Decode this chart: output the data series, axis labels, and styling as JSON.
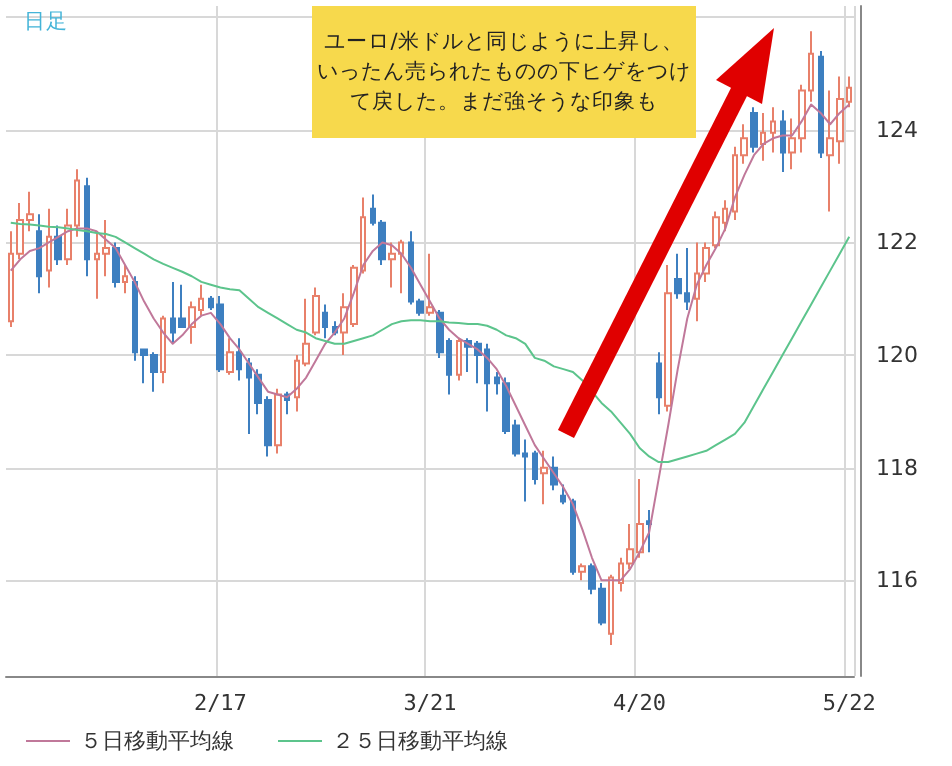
{
  "chart_data": {
    "type": "candlestick",
    "categories": [
      null,
      null,
      null,
      null,
      null,
      null,
      null,
      null,
      null,
      null,
      null,
      null,
      null,
      null,
      null,
      null,
      null,
      null,
      null,
      null,
      null,
      null,
      "2/17",
      null,
      null,
      null,
      null,
      null,
      null,
      null,
      null,
      null,
      null,
      null,
      null,
      null,
      null,
      null,
      null,
      null,
      null,
      null,
      null,
      null,
      "3/21",
      null,
      null,
      null,
      null,
      null,
      null,
      null,
      null,
      null,
      null,
      null,
      null,
      null,
      null,
      null,
      null,
      null,
      null,
      null,
      null,
      null,
      "4/20",
      null,
      null,
      null,
      null,
      null,
      null,
      null,
      null,
      null,
      null,
      null,
      null,
      null,
      null,
      null,
      null,
      null,
      null,
      null,
      null,
      null,
      "5/22"
    ],
    "ohlc": [
      [
        120.6,
        122.2,
        120.5,
        121.8
      ],
      [
        121.8,
        122.7,
        121.7,
        122.4
      ],
      [
        122.4,
        122.9,
        122.2,
        122.5
      ],
      [
        122.2,
        122.5,
        121.1,
        121.4
      ],
      [
        121.5,
        122.6,
        121.2,
        122.1
      ],
      [
        122.1,
        122.3,
        121.6,
        121.7
      ],
      [
        121.7,
        122.6,
        121.6,
        122.3
      ],
      [
        122.3,
        123.3,
        122.1,
        123.1
      ],
      [
        123.0,
        123.15,
        121.4,
        121.7
      ],
      [
        121.7,
        122.2,
        121.0,
        121.8
      ],
      [
        121.8,
        122.4,
        121.4,
        121.9
      ],
      [
        121.9,
        122.0,
        121.2,
        121.3
      ],
      [
        121.3,
        121.6,
        121.1,
        121.4
      ],
      [
        121.3,
        121.4,
        119.9,
        120.05
      ],
      [
        120.1,
        120.1,
        119.5,
        120.0
      ],
      [
        120.0,
        120.05,
        119.35,
        119.7
      ],
      [
        119.7,
        120.7,
        119.5,
        120.65
      ],
      [
        120.65,
        121.3,
        120.2,
        120.4
      ],
      [
        120.65,
        121.25,
        120.5,
        120.5
      ],
      [
        120.5,
        120.95,
        120.2,
        120.85
      ],
      [
        120.8,
        121.25,
        120.7,
        121.0
      ],
      [
        121.0,
        121.05,
        120.8,
        120.85
      ],
      [
        120.9,
        121.05,
        119.7,
        119.75
      ],
      [
        119.7,
        120.3,
        119.65,
        120.05
      ],
      [
        120.05,
        120.3,
        119.55,
        119.75
      ],
      [
        119.85,
        119.95,
        118.6,
        119.6
      ],
      [
        119.65,
        119.75,
        118.95,
        119.15
      ],
      [
        119.2,
        119.27,
        118.2,
        118.4
      ],
      [
        118.4,
        119.4,
        118.25,
        119.3
      ],
      [
        119.3,
        119.35,
        118.95,
        119.2
      ],
      [
        119.25,
        120.0,
        119.0,
        119.9
      ],
      [
        119.85,
        121.0,
        119.8,
        120.2
      ],
      [
        120.4,
        121.2,
        120.35,
        121.05
      ],
      [
        120.75,
        120.9,
        120.3,
        120.5
      ],
      [
        120.5,
        120.6,
        120.35,
        120.4
      ],
      [
        120.4,
        121.1,
        120.0,
        120.85
      ],
      [
        120.55,
        121.6,
        120.5,
        121.55
      ],
      [
        121.5,
        122.8,
        121.45,
        122.45
      ],
      [
        122.6,
        122.85,
        122.3,
        122.35
      ],
      [
        122.35,
        122.4,
        121.6,
        121.7
      ],
      [
        121.7,
        122.0,
        121.2,
        121.8
      ],
      [
        121.8,
        122.05,
        121.1,
        122.0
      ],
      [
        122.0,
        122.2,
        120.9,
        120.95
      ],
      [
        120.95,
        121.0,
        120.7,
        120.75
      ],
      [
        120.75,
        121.8,
        120.7,
        120.85
      ],
      [
        120.75,
        120.8,
        119.95,
        120.05
      ],
      [
        120.25,
        120.3,
        119.3,
        119.65
      ],
      [
        119.65,
        120.3,
        119.55,
        120.25
      ],
      [
        120.25,
        120.3,
        119.7,
        120.15
      ],
      [
        120.2,
        120.25,
        119.5,
        120.0
      ],
      [
        120.1,
        120.2,
        119.0,
        119.5
      ],
      [
        119.6,
        119.7,
        119.3,
        119.5
      ],
      [
        119.5,
        119.6,
        118.6,
        118.65
      ],
      [
        118.75,
        118.85,
        118.2,
        118.25
      ],
      [
        118.25,
        118.5,
        117.4,
        118.2
      ],
      [
        118.25,
        118.3,
        117.7,
        117.8
      ],
      [
        117.9,
        118.3,
        117.35,
        118.0
      ],
      [
        118.0,
        118.2,
        117.6,
        117.7
      ],
      [
        117.5,
        117.7,
        117.35,
        117.4
      ],
      [
        117.4,
        117.45,
        116.1,
        116.15
      ],
      [
        116.15,
        116.3,
        116.0,
        116.25
      ],
      [
        116.25,
        116.3,
        115.75,
        115.85
      ],
      [
        115.85,
        115.95,
        115.2,
        115.25
      ],
      [
        115.05,
        116.1,
        114.85,
        116.05
      ],
      [
        115.95,
        116.4,
        115.8,
        116.3
      ],
      [
        116.3,
        117.0,
        116.2,
        116.55
      ],
      [
        116.5,
        117.8,
        116.4,
        117.0
      ],
      [
        117.05,
        117.25,
        116.5,
        117.0
      ],
      [
        119.85,
        120.05,
        118.95,
        119.25
      ],
      [
        119.1,
        121.6,
        119.0,
        121.1
      ],
      [
        121.35,
        121.8,
        121.0,
        121.1
      ],
      [
        121.1,
        121.9,
        120.8,
        120.95
      ],
      [
        121.0,
        122.0,
        120.6,
        121.45
      ],
      [
        121.45,
        122.0,
        121.3,
        121.9
      ],
      [
        121.95,
        122.55,
        121.9,
        122.45
      ],
      [
        122.35,
        122.75,
        122.2,
        122.6
      ],
      [
        122.55,
        123.7,
        122.4,
        123.55
      ],
      [
        123.55,
        124.1,
        123.4,
        123.85
      ],
      [
        124.3,
        124.4,
        123.6,
        123.7
      ],
      [
        123.75,
        124.3,
        123.45,
        123.95
      ],
      [
        123.95,
        124.4,
        123.6,
        124.15
      ],
      [
        124.15,
        124.35,
        123.25,
        123.6
      ],
      [
        123.6,
        124.2,
        123.3,
        123.85
      ],
      [
        123.85,
        124.8,
        123.6,
        124.7
      ],
      [
        124.7,
        125.75,
        124.5,
        125.35
      ],
      [
        125.3,
        125.4,
        123.5,
        123.6
      ],
      [
        123.55,
        124.7,
        122.55,
        123.85
      ],
      [
        123.8,
        124.95,
        123.4,
        124.55
      ],
      [
        124.5,
        124.95,
        124.4,
        124.75
      ]
    ],
    "series": [
      {
        "name": "５日移動平均線",
        "type": "line",
        "color": "#c0789a",
        "values": [
          121.5,
          121.7,
          121.85,
          121.9,
          122.0,
          122.1,
          122.2,
          122.25,
          122.25,
          122.2,
          122.05,
          121.9,
          121.6,
          121.3,
          120.95,
          120.65,
          120.4,
          120.2,
          120.35,
          120.55,
          120.7,
          120.75,
          120.55,
          120.3,
          120.1,
          119.85,
          119.6,
          119.35,
          119.3,
          119.25,
          119.4,
          119.6,
          119.9,
          120.2,
          120.4,
          120.65,
          121.1,
          121.6,
          121.85,
          122.0,
          121.95,
          121.8,
          121.55,
          121.25,
          120.95,
          120.65,
          120.45,
          120.3,
          120.2,
          120.1,
          119.95,
          119.75,
          119.45,
          119.1,
          118.75,
          118.4,
          118.15,
          117.9,
          117.65,
          117.35,
          116.9,
          116.4,
          116.0,
          116.0,
          116.0,
          116.2,
          116.5,
          116.85,
          117.8,
          118.75,
          119.75,
          120.65,
          121.25,
          121.6,
          121.9,
          122.25,
          122.8,
          123.2,
          123.55,
          123.75,
          123.85,
          123.9,
          123.9,
          124.15,
          124.45,
          124.3,
          124.1,
          124.3,
          124.45
        ]
      },
      {
        "name": "２５日移動平均線",
        "type": "line",
        "color": "#5cc48c",
        "values": [
          122.35,
          122.33,
          122.32,
          122.3,
          122.28,
          122.27,
          122.25,
          122.22,
          122.2,
          122.17,
          122.15,
          122.1,
          122.0,
          121.9,
          121.8,
          121.7,
          121.62,
          121.55,
          121.48,
          121.4,
          121.3,
          121.25,
          121.2,
          121.17,
          121.15,
          121.0,
          120.85,
          120.75,
          120.65,
          120.55,
          120.45,
          120.4,
          120.3,
          120.25,
          120.2,
          120.2,
          120.25,
          120.3,
          120.35,
          120.45,
          120.55,
          120.6,
          120.62,
          120.62,
          120.6,
          120.6,
          120.58,
          120.57,
          120.55,
          120.55,
          120.52,
          120.45,
          120.35,
          120.3,
          120.2,
          119.95,
          119.9,
          119.8,
          119.75,
          119.7,
          119.55,
          119.35,
          119.15,
          119.0,
          118.8,
          118.6,
          118.35,
          118.2,
          118.1,
          118.1,
          118.15,
          118.2,
          118.25,
          118.3,
          118.4,
          118.5,
          118.6,
          118.8,
          119.1,
          119.4,
          119.7,
          120.0,
          120.3,
          120.6,
          120.9,
          121.2,
          121.5,
          121.8,
          122.1
        ]
      }
    ],
    "ylim": [
      114.3,
      126.2
    ],
    "yticks": [
      116,
      118,
      120,
      122,
      124,
      {
        "value": 126,
        "label": null
      }
    ],
    "grid": true,
    "legend": "bottom left",
    "marker": "none",
    "line_style": "solid",
    "annotations": [
      "日足",
      "ユーロ/米ドルと同じように上昇し、いったん売られたものの下ヒゲをつけて戻した。まだ強そうな印象も"
    ]
  }
}
